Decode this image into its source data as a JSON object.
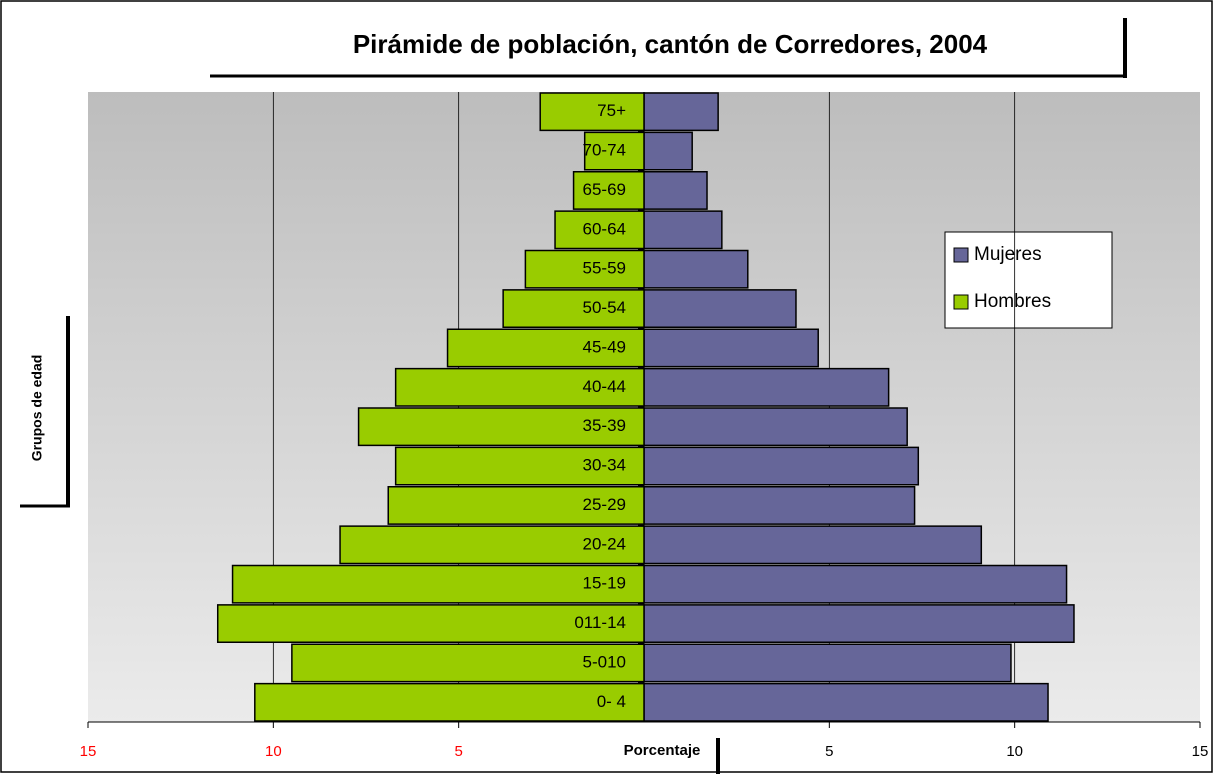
{
  "chart_data": {
    "type": "pyramid",
    "title": "Pirámide de población, cantón de Corredores, 2004",
    "y_label": "Grupos de edad",
    "x_label": "Porcentaje",
    "categories": [
      "0- 4",
      "5-010",
      "011-14",
      "15-19",
      "20-24",
      "25-29",
      "30-34",
      "35-39",
      "40-44",
      "45-49",
      "50-54",
      "55-59",
      "60-64",
      "65-69",
      "70-74",
      "75+"
    ],
    "series": [
      {
        "name": "Mujeres",
        "color": "#666699",
        "values": [
          10.9,
          9.9,
          11.6,
          11.4,
          9.1,
          7.3,
          7.4,
          7.1,
          6.6,
          4.7,
          4.1,
          2.8,
          2.1,
          1.7,
          1.3,
          2.0
        ]
      },
      {
        "name": "Hombres",
        "color": "#99cc00",
        "values": [
          -10.5,
          -9.5,
          -11.5,
          -11.1,
          -8.2,
          -6.9,
          -6.7,
          -7.7,
          -6.7,
          -5.3,
          -3.8,
          -3.2,
          -2.4,
          -1.9,
          -1.6,
          -2.8
        ]
      }
    ],
    "xlim": [
      -15,
      15
    ],
    "xticks": [
      {
        "value": -15,
        "label": "15"
      },
      {
        "value": -10,
        "label": "10"
      },
      {
        "value": -5,
        "label": "5"
      },
      5,
      10,
      15
    ],
    "negative_tick_color": "#ff0000",
    "grid": true,
    "legend": "right"
  }
}
